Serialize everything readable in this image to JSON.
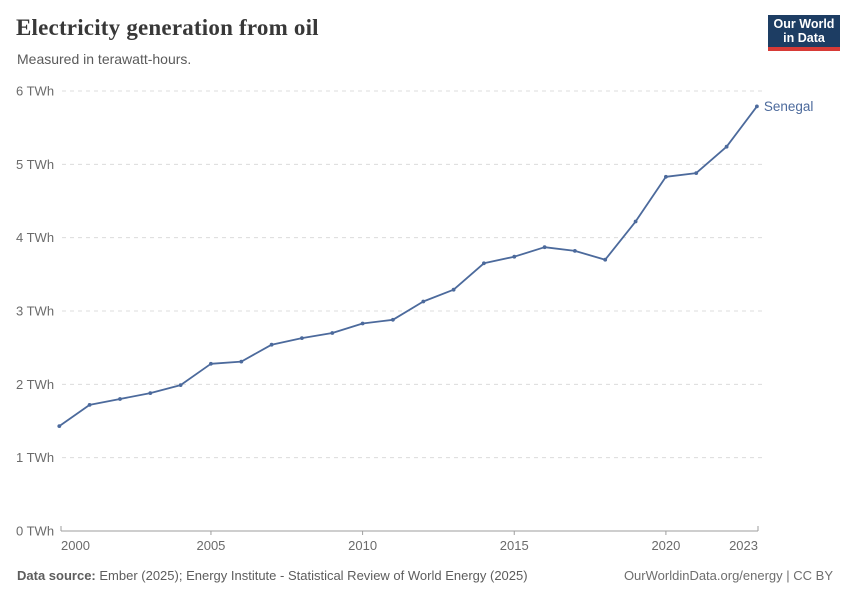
{
  "header": {
    "title": "Electricity generation from oil",
    "subtitle": "Measured in terawatt-hours.",
    "logo": {
      "line1": "Our World",
      "line2": "in Data",
      "bg_color": "#1d3d63",
      "accent_color": "#d73a36"
    }
  },
  "chart_data": {
    "type": "line",
    "title": "Electricity generation from oil",
    "subtitle": "Measured in terawatt-hours.",
    "unit": "TWh",
    "xlim": [
      2000,
      2023
    ],
    "ylim": [
      0,
      6
    ],
    "grid": "horizontal-dashed",
    "legend_position": "end-of-line-label",
    "series": [
      {
        "name": "Senegal",
        "color": "#4c6a9c",
        "x": [
          2000,
          2001,
          2002,
          2003,
          2004,
          2005,
          2006,
          2007,
          2008,
          2009,
          2010,
          2011,
          2012,
          2013,
          2014,
          2015,
          2016,
          2017,
          2018,
          2019,
          2020,
          2021,
          2022,
          2023
        ],
        "values": [
          1.43,
          1.72,
          1.8,
          1.88,
          1.99,
          2.28,
          2.31,
          2.54,
          2.63,
          2.7,
          2.83,
          2.88,
          3.13,
          3.29,
          3.65,
          3.74,
          3.87,
          3.82,
          3.7,
          4.22,
          4.83,
          4.88,
          5.24,
          5.79
        ]
      }
    ],
    "y_ticks": [
      {
        "value": 0,
        "label": "0 TWh"
      },
      {
        "value": 1,
        "label": "1 TWh"
      },
      {
        "value": 2,
        "label": "2 TWh"
      },
      {
        "value": 3,
        "label": "3 TWh"
      },
      {
        "value": 4,
        "label": "4 TWh"
      },
      {
        "value": 5,
        "label": "5 TWh"
      },
      {
        "value": 6,
        "label": "6 TWh"
      }
    ],
    "x_ticks": [
      {
        "value": 2000,
        "label": "2000"
      },
      {
        "value": 2005,
        "label": "2005"
      },
      {
        "value": 2010,
        "label": "2010"
      },
      {
        "value": 2015,
        "label": "2015"
      },
      {
        "value": 2020,
        "label": "2020"
      },
      {
        "value": 2023,
        "label": "2023"
      }
    ]
  },
  "footer": {
    "source_label": "Data source:",
    "source_text": " Ember (2025); Energy Institute - Statistical Review of World Energy (2025)",
    "right_text": "OurWorldinData.org/energy | CC BY"
  }
}
